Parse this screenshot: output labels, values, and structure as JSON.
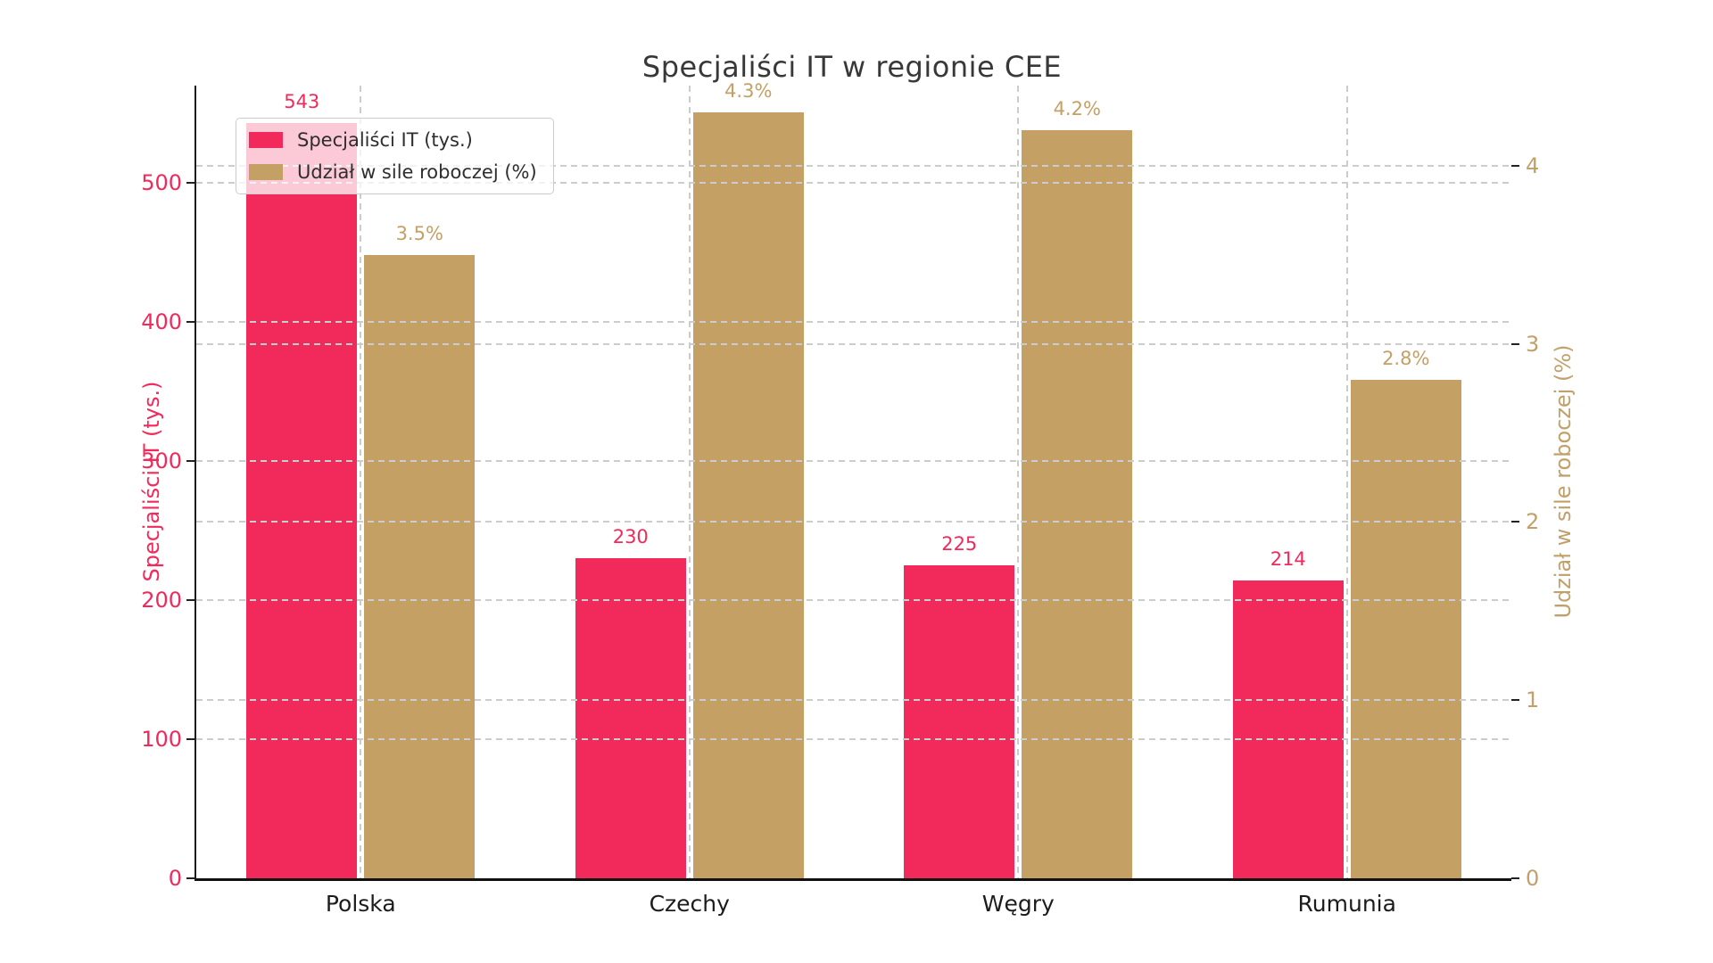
{
  "chart_data": {
    "type": "bar",
    "title": "Specjaliści IT w regionie CEE",
    "categories": [
      "Polska",
      "Czechy",
      "Węgry",
      "Rumunia"
    ],
    "series": [
      {
        "name": "Specjaliści IT (tys.)",
        "axis": "left",
        "color": "#F2295B",
        "values": [
          543,
          230,
          225,
          214
        ],
        "value_labels": [
          "543",
          "230",
          "225",
          "214"
        ]
      },
      {
        "name": "Udział w sile roboczej (%)",
        "axis": "right",
        "color": "#C5A065",
        "values": [
          3.5,
          4.3,
          4.2,
          2.8
        ],
        "value_labels": [
          "3.5%",
          "4.3%",
          "4.2%",
          "2.8%"
        ]
      }
    ],
    "left_axis": {
      "label": "Specjaliści IT (tys.)",
      "ticks": [
        0,
        100,
        200,
        300,
        400,
        500
      ],
      "range": [
        0,
        570
      ],
      "color": "#F2295B"
    },
    "right_axis": {
      "label": "Udział w sile roboczej (%)",
      "ticks": [
        0,
        1,
        2,
        3,
        4
      ],
      "range": [
        0,
        4.45
      ],
      "color": "#C2A06A"
    },
    "grid": {
      "style": "dashed",
      "color": "#cccccc",
      "horizontal": true,
      "vertical": true
    },
    "legend": {
      "position": "top-left"
    }
  }
}
